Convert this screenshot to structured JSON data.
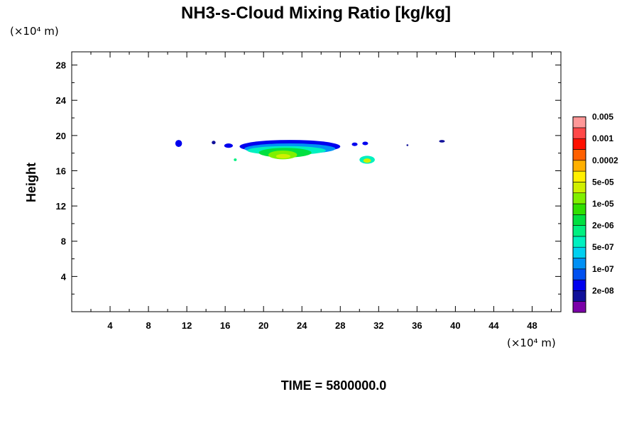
{
  "chart_data": {
    "type": "heatmap",
    "title": "NH3-s-Cloud Mixing Ratio [kg/kg]",
    "ylabel": "Height",
    "xlabel": "",
    "x_unit": "(×10⁴ m)",
    "y_unit": "(×10⁴ m)",
    "xlim": [
      0,
      51
    ],
    "ylim": [
      0,
      29.5
    ],
    "x_ticks": [
      4,
      8,
      12,
      16,
      20,
      24,
      28,
      32,
      36,
      40,
      44,
      48
    ],
    "y_ticks": [
      4,
      8,
      12,
      16,
      20,
      24,
      28
    ],
    "grid": false,
    "footer": "TIME = 5800000.0",
    "colorbar": {
      "levels": [
        {
          "color": "#7b00a8"
        },
        {
          "color": "#10109a",
          "label": "2e-08"
        },
        {
          "color": "#0000ee"
        },
        {
          "color": "#0050f0",
          "label": "1e-07"
        },
        {
          "color": "#0090f5"
        },
        {
          "color": "#00d0f0",
          "label": "5e-07"
        },
        {
          "color": "#00f0c0"
        },
        {
          "color": "#00f080",
          "label": "2e-06"
        },
        {
          "color": "#00e040"
        },
        {
          "color": "#30e000",
          "label": "1e-05"
        },
        {
          "color": "#80f000"
        },
        {
          "color": "#d0f000",
          "label": "5e-05"
        },
        {
          "color": "#fff000"
        },
        {
          "color": "#ffb000",
          "label": "0.0002"
        },
        {
          "color": "#ff6000"
        },
        {
          "color": "#ff1000",
          "label": "0.001"
        },
        {
          "color": "#ff4848"
        },
        {
          "color": "#ff9898",
          "label": "0.005"
        }
      ]
    },
    "regions": [
      {
        "x": [
          10.8,
          11.5
        ],
        "y": [
          18.7,
          19.5
        ],
        "level": 2
      },
      {
        "x": [
          14.6,
          15.0
        ],
        "y": [
          19.0,
          19.4
        ],
        "level": 1
      },
      {
        "x": [
          15.9,
          16.8
        ],
        "y": [
          18.6,
          19.1
        ],
        "level": 2
      },
      {
        "x": [
          17.5,
          28.0
        ],
        "y": [
          18.0,
          19.5
        ],
        "level": 2
      },
      {
        "x": [
          18.0,
          27.5
        ],
        "y": [
          17.9,
          19.1
        ],
        "level": 4
      },
      {
        "x": [
          18.3,
          26.5
        ],
        "y": [
          17.8,
          18.8
        ],
        "level": 6
      },
      {
        "x": [
          19.5,
          25.0
        ],
        "y": [
          17.5,
          18.6
        ],
        "level": 8
      },
      {
        "x": [
          20.5,
          23.5
        ],
        "y": [
          17.3,
          18.3
        ],
        "level": 10
      },
      {
        "x": [
          21.3,
          22.8
        ],
        "y": [
          17.4,
          17.9
        ],
        "level": 11
      },
      {
        "x": [
          29.2,
          29.8
        ],
        "y": [
          18.8,
          19.2
        ],
        "level": 2
      },
      {
        "x": [
          30.3,
          30.9
        ],
        "y": [
          18.9,
          19.3
        ],
        "level": 2
      },
      {
        "x": [
          30.0,
          31.6
        ],
        "y": [
          16.8,
          17.7
        ],
        "level": 6
      },
      {
        "x": [
          30.4,
          31.2
        ],
        "y": [
          16.9,
          17.4
        ],
        "level": 11
      },
      {
        "x": [
          16.9,
          17.2
        ],
        "y": [
          17.1,
          17.4
        ],
        "level": 7
      },
      {
        "x": [
          34.9,
          35.1
        ],
        "y": [
          18.8,
          19.0
        ],
        "level": 1
      },
      {
        "x": [
          38.3,
          38.9
        ],
        "y": [
          19.2,
          19.5
        ],
        "level": 1
      }
    ]
  }
}
